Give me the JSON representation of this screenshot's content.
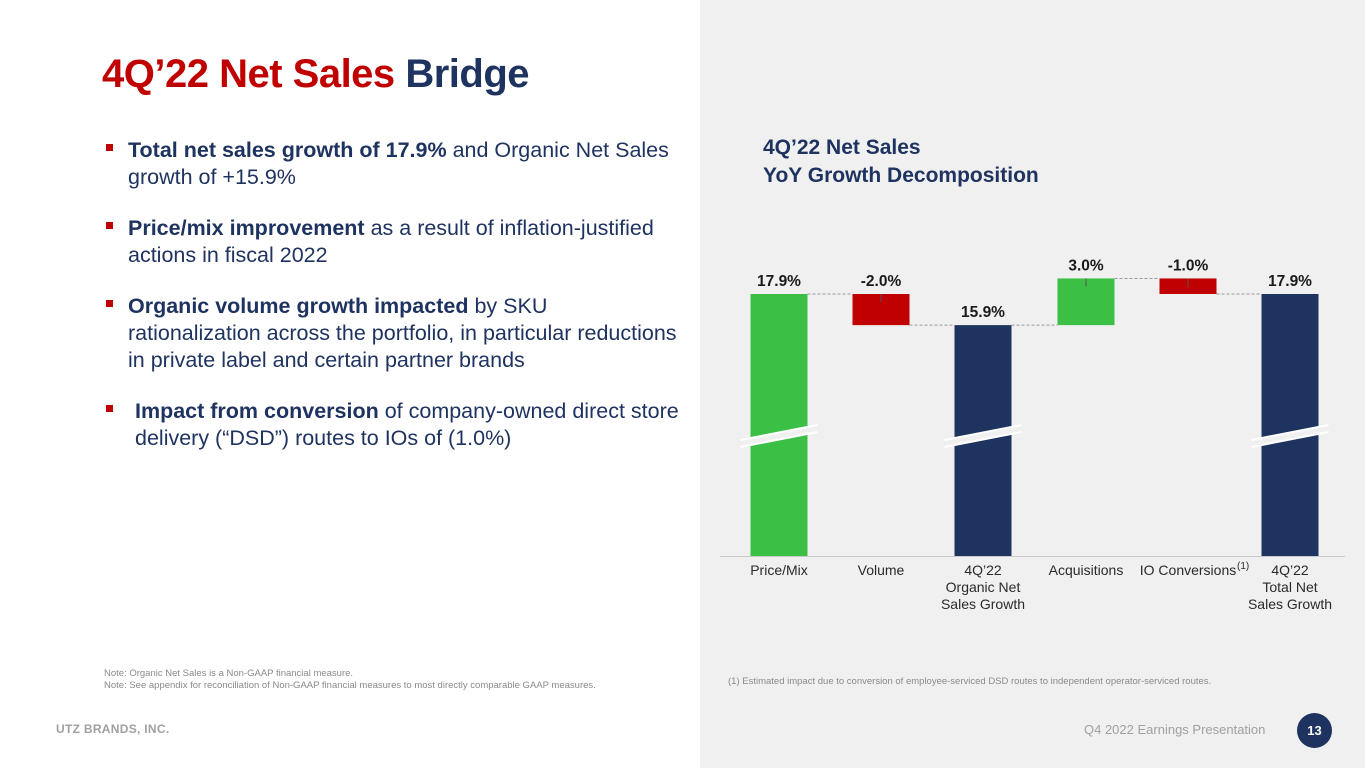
{
  "slide": {
    "title_red": "4Q’22 Net Sales",
    "title_navy": "Bridge",
    "company": "UTZ BRANDS, INC.",
    "presentation": "Q4 2022 Earnings Presentation",
    "page_number": "13"
  },
  "bullets": [
    {
      "bold": "Total net sales growth of 17.9%",
      "text": " and Organic Net Sales growth of +15.9%"
    },
    {
      "bold": "Price/mix improvement",
      "text": " as a result of inflation-justified actions in fiscal 2022"
    },
    {
      "bold": "Organic volume growth impacted",
      "text": " by SKU rationalization across the portfolio, in particular reductions in private label and certain partner brands"
    },
    {
      "bold": "Impact from conversion",
      "text": " of company-owned direct store delivery (“DSD”) routes to IOs of (1.0%)"
    }
  ],
  "notes": {
    "note1": "Note:  Organic Net Sales is a Non-GAAP financial measure.",
    "note2": "Note: See appendix for reconciliation of Non-GAAP financial measures to most directly comparable GAAP measures.",
    "footnote": "(1) Estimated impact due to conversion of employee-serviced DSD routes to independent operator-serviced routes."
  },
  "colors": {
    "green": "#3bbf45",
    "red": "#c00000",
    "navy": "#1f3360"
  },
  "chart_data": {
    "type": "waterfall",
    "title_line1": "4Q’22 Net Sales",
    "title_line2": "YoY Growth Decomposition",
    "categories": [
      {
        "lines": [
          "Price/Mix"
        ],
        "superscript": ""
      },
      {
        "lines": [
          "Volume"
        ],
        "superscript": ""
      },
      {
        "lines": [
          "4Q’22",
          "Organic Net",
          "Sales Growth"
        ],
        "superscript": ""
      },
      {
        "lines": [
          "Acquisitions"
        ],
        "superscript": ""
      },
      {
        "lines": [
          "IO Conversions"
        ],
        "superscript": "(1)"
      },
      {
        "lines": [
          "4Q’22",
          "Total Net",
          "Sales Growth"
        ],
        "superscript": ""
      }
    ],
    "values": [
      17.9,
      -2.0,
      15.9,
      3.0,
      -1.0,
      17.9
    ],
    "labels": [
      "17.9%",
      "-2.0%",
      "15.9%",
      "3.0%",
      "-1.0%",
      "17.9%"
    ],
    "kinds": [
      "increase",
      "decrease",
      "total",
      "increase",
      "decrease",
      "total"
    ],
    "axis_break": true
  }
}
